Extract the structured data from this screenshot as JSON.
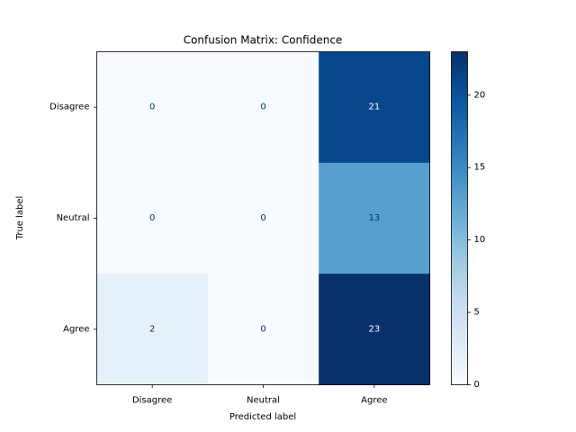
{
  "chart_data": {
    "type": "heatmap",
    "title": "Confusion Matrix: Confidence",
    "xlabel": "Predicted label",
    "ylabel": "True label",
    "x_categories": [
      "Disagree",
      "Neutral",
      "Agree"
    ],
    "y_categories": [
      "Disagree",
      "Neutral",
      "Agree"
    ],
    "values": [
      [
        0,
        0,
        21
      ],
      [
        0,
        0,
        13
      ],
      [
        2,
        0,
        23
      ]
    ],
    "colormap": "Blues",
    "colorbar": {
      "range": [
        0,
        23
      ],
      "ticks": [
        0,
        5,
        10,
        15,
        20
      ]
    },
    "grid": false
  }
}
